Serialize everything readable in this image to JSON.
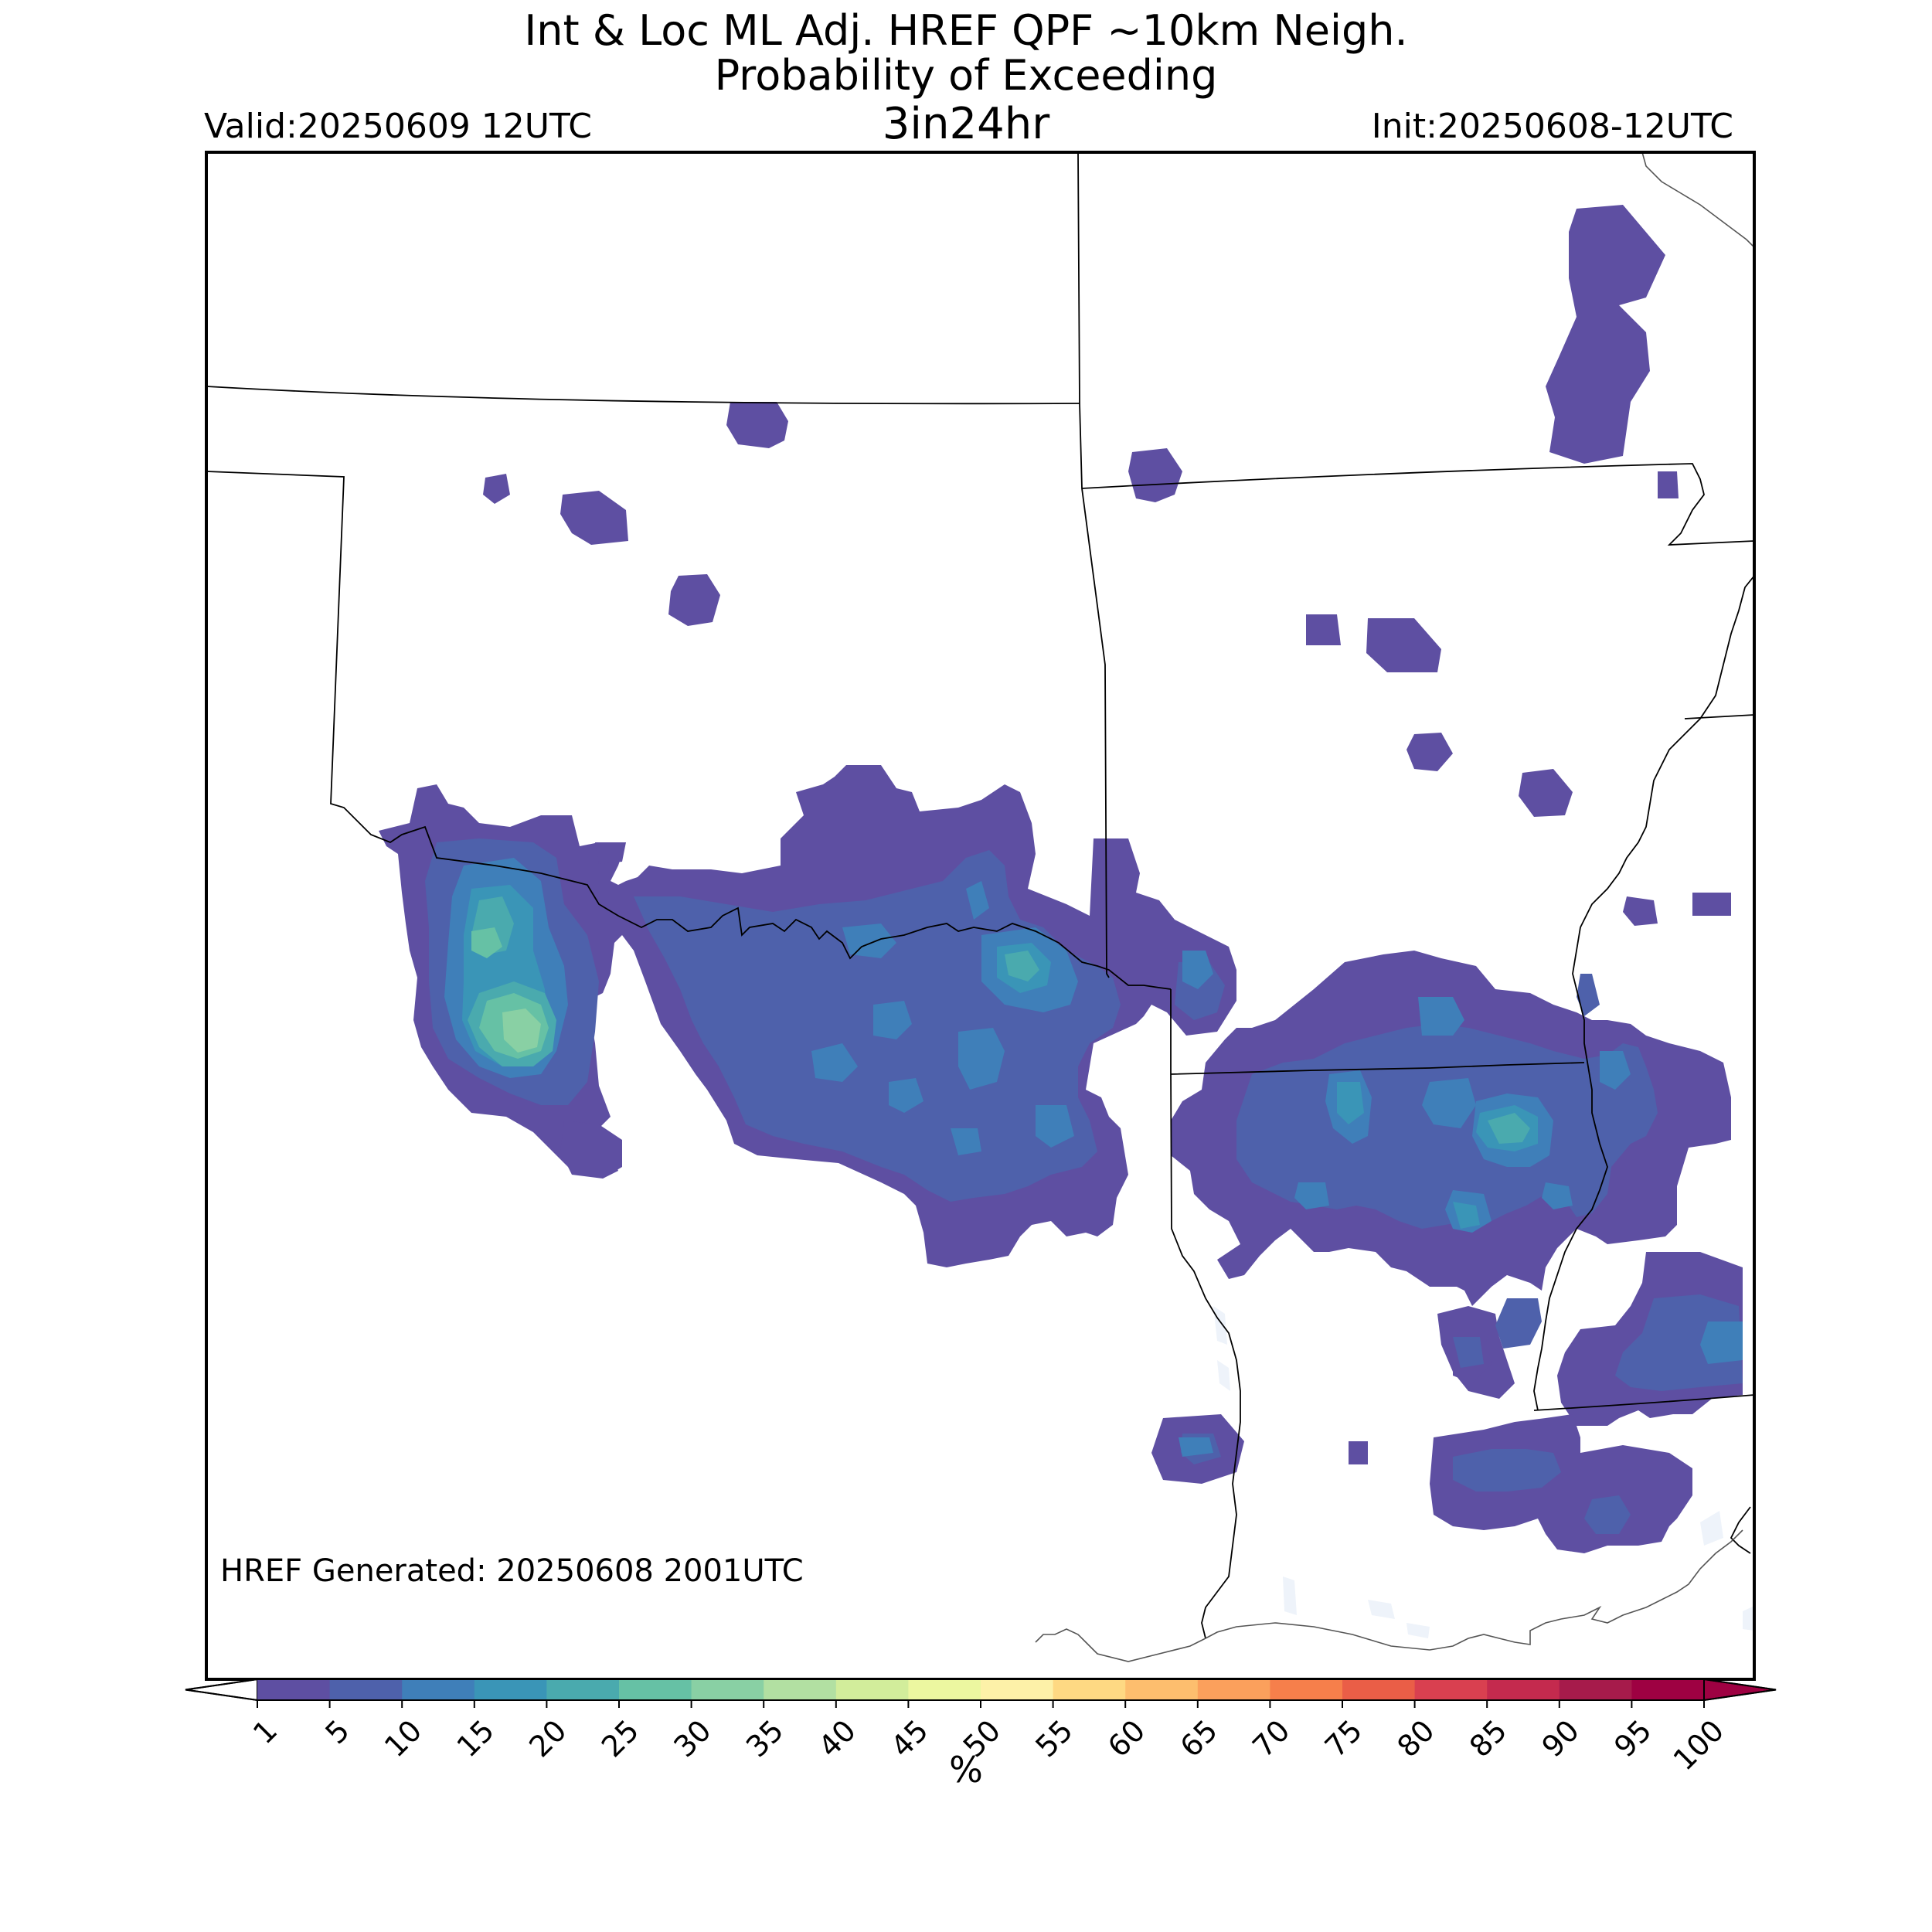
{
  "title": {
    "line1": "Int & Loc ML Adj. HREF QPF ~10km Neigh.",
    "line2": "Probability of Exceeding",
    "line3": "3in24hr"
  },
  "valid": "Valid:20250609 12UTC",
  "init": "Init:20250608-12UTC",
  "generated": "HREF Generated: 20250608 2001UTC",
  "colorbar": {
    "unit": "%",
    "ticks": [
      "1",
      "5",
      "10",
      "15",
      "20",
      "25",
      "30",
      "35",
      "40",
      "45",
      "50",
      "55",
      "60",
      "65",
      "70",
      "75",
      "80",
      "85",
      "90",
      "95",
      "100"
    ],
    "colors": [
      "#5e4fa2",
      "#4e61ab",
      "#3f7fb9",
      "#3a95b7",
      "#4aaaae",
      "#66c1a5",
      "#89d0a4",
      "#b2e0a2",
      "#d2ed9b",
      "#ecf7a0",
      "#fdf1a8",
      "#fed983",
      "#fdbe6e",
      "#fba05c",
      "#f67f4b",
      "#ea5e47",
      "#d94050",
      "#c42a4e",
      "#a61b4b",
      "#9e0142"
    ],
    "under_color": "#ffffff",
    "over_color": "#9e0142"
  },
  "map_colors": {
    "lvl1": "#5e4fa2",
    "lvl2": "#4e61ab",
    "lvl3": "#3f7fb9",
    "lvl4": "#3a95b7",
    "lvl5": "#4aaaae",
    "lvl6": "#66c1a5",
    "lvl7": "#89d0a4",
    "water": "#eef3fa"
  }
}
